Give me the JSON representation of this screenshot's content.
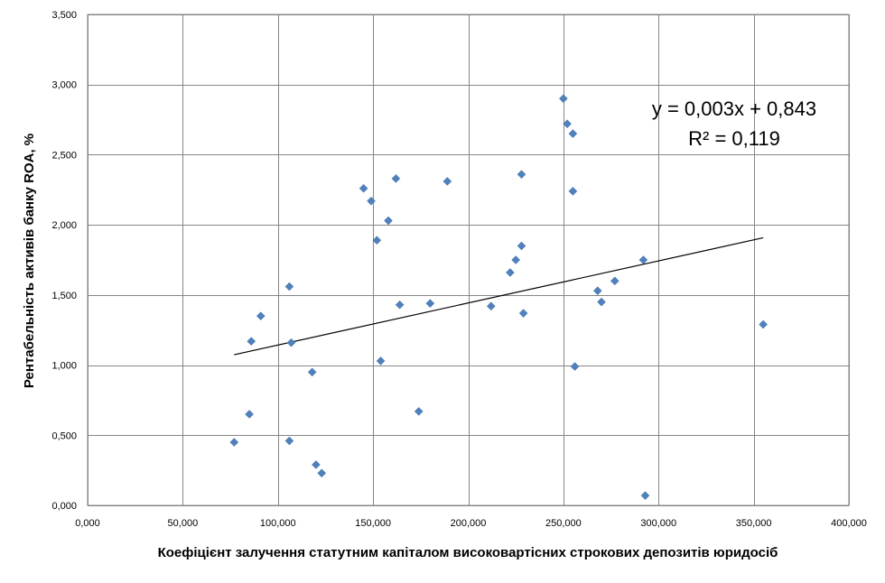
{
  "chart_data": {
    "type": "scatter",
    "xlabel": "Коефіцієнт залучення статутним капіталом  високовартісних  строкових депозитів юридосіб",
    "ylabel": "Рентабельність  активів  банку ROA, %",
    "xlim": [
      0,
      400
    ],
    "ylim": [
      0,
      3.5
    ],
    "x_ticks": [
      0,
      50,
      100,
      150,
      200,
      250,
      300,
      350,
      400
    ],
    "y_ticks": [
      0,
      0.5,
      1.0,
      1.5,
      2.0,
      2.5,
      3.0,
      3.5
    ],
    "x_tick_labels": [
      "0,000",
      "50,000",
      "100,000",
      "150,000",
      "200,000",
      "250,000",
      "300,000",
      "350,000",
      "400,000"
    ],
    "y_tick_labels": [
      "0,000",
      "0,500",
      "1,000",
      "1,500",
      "2,000",
      "2,500",
      "3,000",
      "3,500"
    ],
    "grid": true,
    "marker_color": "#4f81bd",
    "trendline": {
      "x_range": [
        77,
        355
      ],
      "slope": 0.003,
      "intercept": 0.843,
      "equation": "y = 0,003x + 0,843",
      "r2_label": "R² = 0,119"
    },
    "points": [
      {
        "x": 77,
        "y": 0.45
      },
      {
        "x": 85,
        "y": 0.65
      },
      {
        "x": 86,
        "y": 1.17
      },
      {
        "x": 91,
        "y": 1.35
      },
      {
        "x": 106,
        "y": 0.46
      },
      {
        "x": 106,
        "y": 1.56
      },
      {
        "x": 107,
        "y": 1.16
      },
      {
        "x": 118,
        "y": 0.95
      },
      {
        "x": 120,
        "y": 0.29
      },
      {
        "x": 123,
        "y": 0.23
      },
      {
        "x": 145,
        "y": 2.26
      },
      {
        "x": 149,
        "y": 2.17
      },
      {
        "x": 152,
        "y": 1.89
      },
      {
        "x": 154,
        "y": 1.03
      },
      {
        "x": 158,
        "y": 2.03
      },
      {
        "x": 162,
        "y": 2.33
      },
      {
        "x": 164,
        "y": 1.43
      },
      {
        "x": 174,
        "y": 0.67
      },
      {
        "x": 180,
        "y": 1.44
      },
      {
        "x": 189,
        "y": 2.31
      },
      {
        "x": 212,
        "y": 1.42
      },
      {
        "x": 222,
        "y": 1.66
      },
      {
        "x": 225,
        "y": 1.75
      },
      {
        "x": 228,
        "y": 1.85
      },
      {
        "x": 228,
        "y": 2.36
      },
      {
        "x": 229,
        "y": 1.37
      },
      {
        "x": 250,
        "y": 2.9
      },
      {
        "x": 252,
        "y": 2.72
      },
      {
        "x": 255,
        "y": 2.65
      },
      {
        "x": 255,
        "y": 2.24
      },
      {
        "x": 256,
        "y": 0.99
      },
      {
        "x": 268,
        "y": 1.53
      },
      {
        "x": 270,
        "y": 1.45
      },
      {
        "x": 277,
        "y": 1.6
      },
      {
        "x": 292,
        "y": 1.75
      },
      {
        "x": 293,
        "y": 0.07
      },
      {
        "x": 355,
        "y": 1.29
      }
    ]
  }
}
